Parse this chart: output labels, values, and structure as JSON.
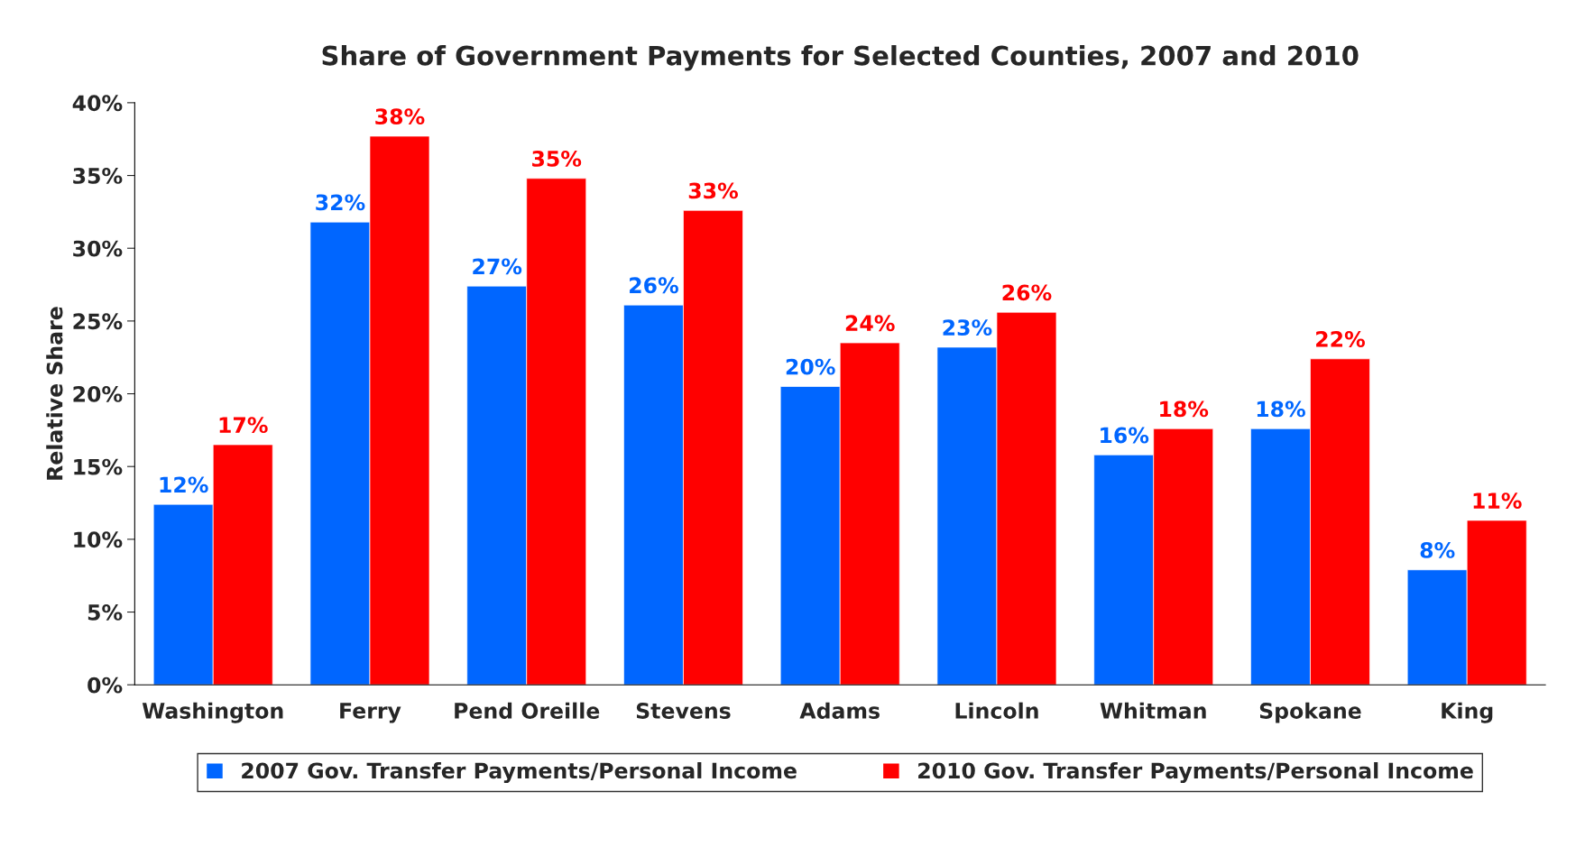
{
  "chart_data": {
    "type": "bar",
    "title": "Share of Government Payments for Selected Counties, 2007 and 2010",
    "ylabel": "Relative Share",
    "categories": [
      "Washington",
      "Ferry",
      "Pend Oreille",
      "Stevens",
      "Adams",
      "Lincoln",
      "Whitman",
      "Spokane",
      "King"
    ],
    "series": [
      {
        "name": "2007 Gov. Transfer Payments/Personal Income",
        "color": "#0066ff",
        "values": [
          12.4,
          31.8,
          27.4,
          26.1,
          20.5,
          23.2,
          15.8,
          17.6,
          7.9
        ],
        "value_labels": [
          "12%",
          "32%",
          "27%",
          "26%",
          "20%",
          "23%",
          "16%",
          "18%",
          "8%"
        ]
      },
      {
        "name": "2010 Gov. Transfer Payments/Personal Income",
        "color": "#ff0000",
        "values": [
          16.5,
          37.7,
          34.8,
          32.6,
          23.5,
          25.6,
          17.6,
          22.4,
          11.3
        ],
        "value_labels": [
          "17%",
          "38%",
          "35%",
          "33%",
          "24%",
          "26%",
          "18%",
          "22%",
          "11%"
        ]
      }
    ],
    "ylim": [
      0,
      40
    ],
    "yticks": [
      {
        "value": 0,
        "label": "0%"
      },
      {
        "value": 5,
        "label": "5%"
      },
      {
        "value": 10,
        "label": "10%"
      },
      {
        "value": 15,
        "label": "15%"
      },
      {
        "value": 20,
        "label": "20%"
      },
      {
        "value": 25,
        "label": "25%"
      },
      {
        "value": 30,
        "label": "30%"
      },
      {
        "value": 35,
        "label": "35%"
      },
      {
        "value": 40,
        "label": "40%"
      }
    ],
    "grid": false,
    "legend": "bottom"
  }
}
